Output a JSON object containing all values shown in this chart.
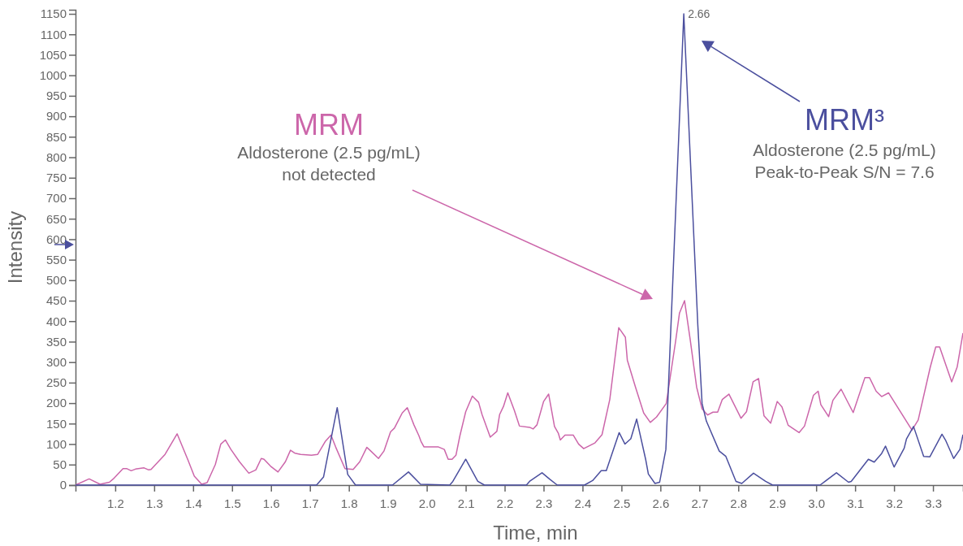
{
  "chart_data": {
    "type": "line",
    "xlabel": "Time, min",
    "ylabel": "Intensity",
    "xlim": [
      1.098,
      3.377
    ],
    "ylim": [
      0,
      1160
    ],
    "xticks": [
      1.2,
      1.3,
      1.4,
      1.5,
      1.6,
      1.7,
      1.8,
      1.9,
      {
        "value": 2,
        "label": "2.0"
      },
      2.1,
      2.2,
      2.3,
      2.4,
      2.5,
      2.6,
      2.7,
      2.8,
      2.9,
      {
        "value": 3,
        "label": "3.0"
      },
      3.1,
      3.2,
      3.3
    ],
    "yticks": [
      0,
      50,
      100,
      150,
      200,
      250,
      300,
      350,
      400,
      450,
      500,
      550,
      600,
      650,
      700,
      750,
      800,
      850,
      900,
      950,
      1000,
      1050,
      1100,
      1150
    ],
    "grid": false,
    "annotations": [
      "Aldosterone (2.5 pg/mL)",
      "not detected",
      "Aldosterone (2.5 pg/mL)",
      "Peak-to-Peak S/N = 7.6",
      {
        "text": "2.66",
        "x": 2.66,
        "y": 1150
      }
    ],
    "series": [
      {
        "name": "MRM",
        "color": "#cc66aa",
        "x": [
          1.098,
          1.133,
          1.161,
          1.185,
          1.195,
          1.22,
          1.23,
          1.241,
          1.252,
          1.274,
          1.286,
          1.292,
          1.328,
          1.359,
          1.386,
          1.403,
          1.422,
          1.436,
          1.457,
          1.471,
          1.483,
          1.497,
          1.519,
          1.543,
          1.561,
          1.575,
          1.582,
          1.599,
          1.618,
          1.637,
          1.65,
          1.661,
          1.676,
          1.704,
          1.72,
          1.739,
          1.754,
          1.766,
          1.79,
          1.811,
          1.828,
          1.846,
          1.853,
          1.876,
          1.89,
          1.907,
          1.917,
          1.937,
          1.95,
          1.967,
          1.98,
          1.985,
          1.993,
          2.03,
          2.045,
          2.055,
          2.065,
          2.075,
          2.085,
          2.1,
          2.117,
          2.133,
          2.142,
          2.163,
          2.18,
          2.187,
          2.197,
          2.208,
          2.225,
          2.238,
          2.264,
          2.273,
          2.283,
          2.3,
          2.313,
          2.328,
          2.338,
          2.343,
          2.355,
          2.376,
          2.39,
          2.403,
          2.432,
          2.45,
          2.47,
          2.48,
          2.493,
          2.51,
          2.515,
          2.536,
          2.557,
          2.574,
          2.59,
          2.615,
          2.639,
          2.649,
          2.662,
          2.676,
          2.693,
          2.707,
          2.721,
          2.735,
          2.747,
          2.759,
          2.776,
          2.807,
          2.821,
          2.838,
          2.852,
          2.866,
          2.883,
          2.9,
          2.912,
          2.928,
          2.956,
          2.97,
          2.993,
          3.005,
          3.012,
          3.032,
          3.043,
          3.064,
          3.095,
          3.125,
          3.137,
          3.154,
          3.168,
          3.186,
          3.246,
          3.262,
          3.293,
          3.307,
          3.317,
          3.348,
          3.362,
          3.377
        ],
        "values": [
          0,
          15,
          2,
          7,
          15,
          40,
          40,
          35,
          39,
          42,
          37,
          38,
          75,
          125,
          63,
          22,
          2,
          6,
          50,
          100,
          110,
          87,
          57,
          29,
          37,
          65,
          63,
          46,
          32,
          57,
          85,
          78,
          75,
          73,
          75,
          106,
          122,
          93,
          40,
          38,
          57,
          92,
          86,
          65,
          83,
          130,
          139,
          176,
          189,
          147,
          120,
          107,
          93,
          93,
          87,
          63,
          63,
          73,
          120,
          179,
          217,
          202,
          172,
          117,
          131,
          172,
          192,
          225,
          182,
          144,
          141,
          137,
          147,
          204,
          222,
          143,
          126,
          110,
          122,
          122,
          100,
          89,
          103,
          123,
          209,
          285,
          384,
          361,
          305,
          239,
          176,
          153,
          166,
          199,
          351,
          420,
          450,
          358,
          239,
          186,
          171,
          178,
          178,
          209,
          222,
          163,
          179,
          252,
          260,
          169,
          151,
          204,
          191,
          146,
          128,
          144,
          219,
          229,
          196,
          167,
          207,
          234,
          177,
          262,
          262,
          229,
          216,
          225,
          134,
          159,
          288,
          337,
          337,
          252,
          288,
          371
        ]
      },
      {
        "name": "MRM³",
        "color": "#4b4f9e",
        "x": [
          1.098,
          1.717,
          1.735,
          1.77,
          1.797,
          1.817,
          1.912,
          1.953,
          1.984,
          2.059,
          2.067,
          2.1,
          2.131,
          2.148,
          2.256,
          2.264,
          2.296,
          2.316,
          2.335,
          2.405,
          2.426,
          2.448,
          2.461,
          2.494,
          2.509,
          2.524,
          2.539,
          2.562,
          2.569,
          2.586,
          2.598,
          2.614,
          2.66,
          2.696,
          2.707,
          2.718,
          2.751,
          2.768,
          2.794,
          2.809,
          2.839,
          2.87,
          2.888,
          3.01,
          3.052,
          3.083,
          3.09,
          3.134,
          3.149,
          3.168,
          3.178,
          3.2,
          3.226,
          3.232,
          3.25,
          3.276,
          3.292,
          3.323,
          3.332,
          3.353,
          3.369,
          3.377
        ],
        "values": [
          0,
          0,
          20,
          189,
          26,
          0,
          0,
          32,
          2,
          0,
          9,
          63,
          9,
          0,
          0,
          9,
          30,
          14,
          0,
          0,
          11,
          35,
          35,
          128,
          100,
          113,
          161,
          63,
          27,
          4,
          7,
          87,
          1150,
          391,
          199,
          156,
          83,
          70,
          9,
          4,
          29,
          9,
          0,
          0,
          30,
          7,
          9,
          63,
          56,
          77,
          95,
          44,
          90,
          113,
          143,
          70,
          69,
          124,
          110,
          65,
          87,
          123
        ]
      }
    ]
  }
}
